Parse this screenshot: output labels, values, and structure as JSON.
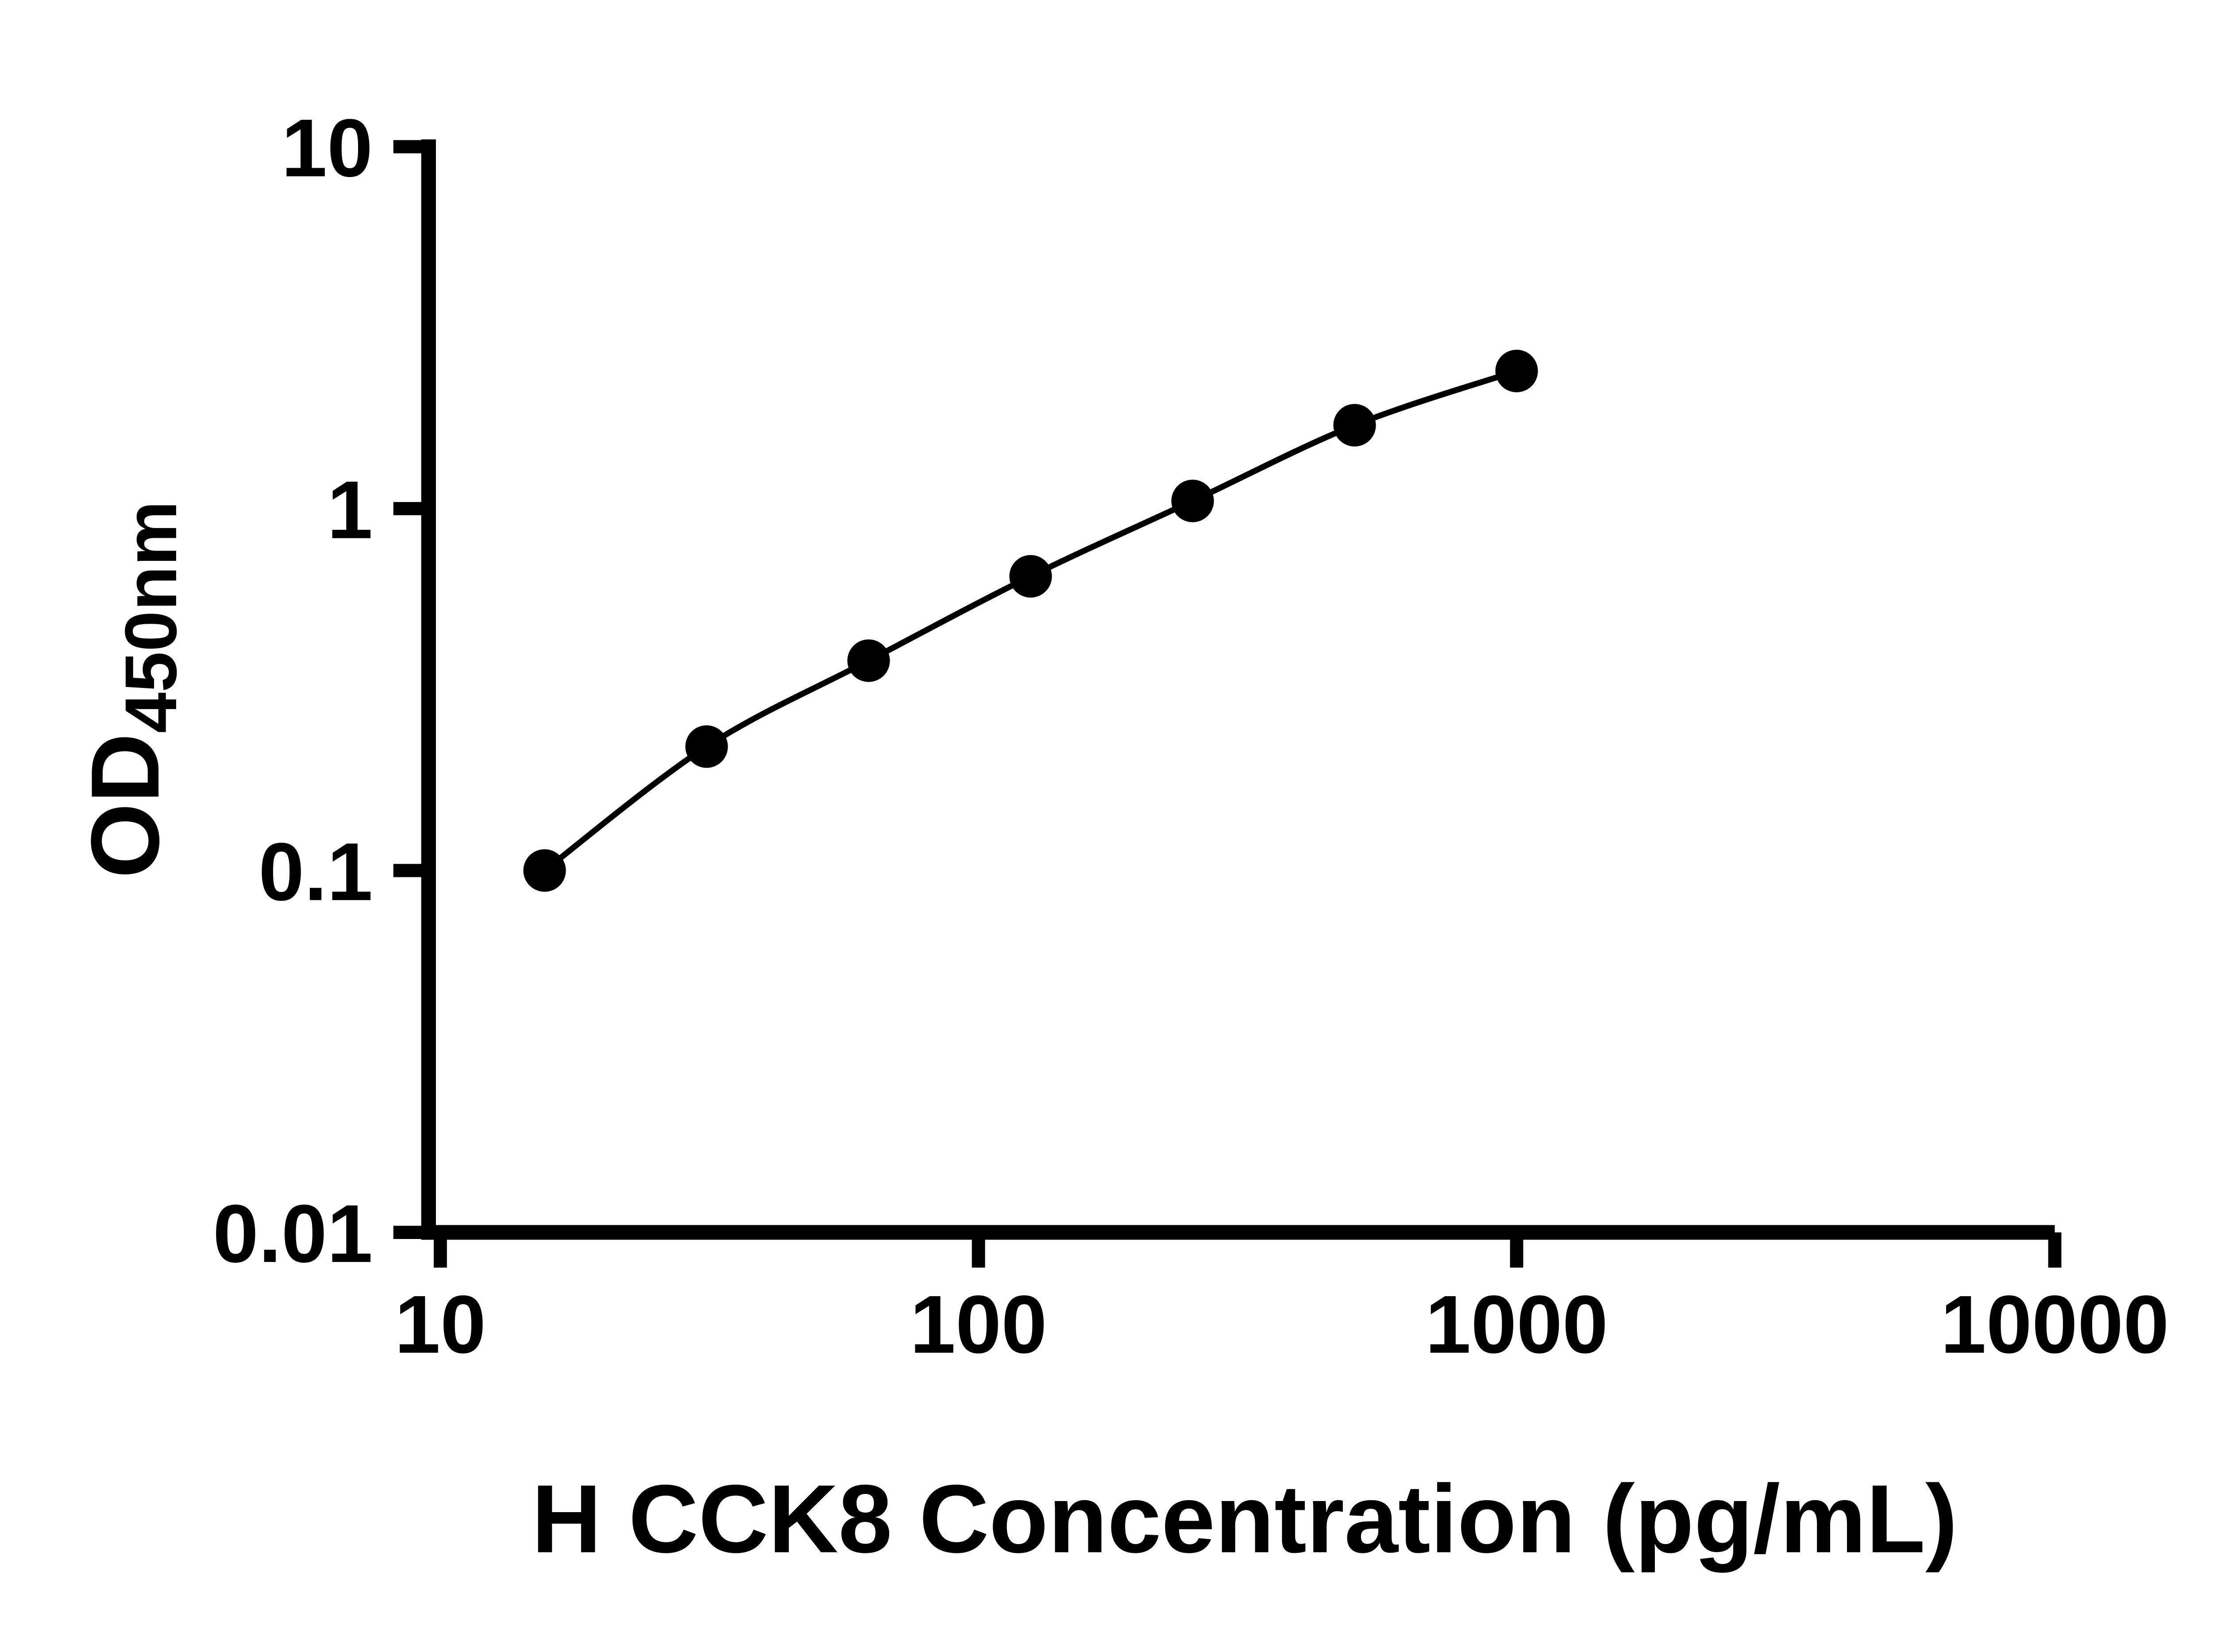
{
  "chart_data": {
    "type": "scatter",
    "series": [
      {
        "name": "standard-curve",
        "x": [
          15.625,
          31.25,
          62.5,
          125,
          250,
          500,
          1000
        ],
        "y": [
          0.1,
          0.22,
          0.38,
          0.65,
          1.05,
          1.7,
          2.4
        ],
        "marker": "circle",
        "line": "smooth-fit"
      }
    ],
    "title": "",
    "xlabel": "H CCK8 Concentration (pg/mL)",
    "ylabel_main": "OD",
    "ylabel_sub": "450nm",
    "x_scale": "log",
    "y_scale": "log",
    "xlim": [
      10,
      10000
    ],
    "ylim": [
      0.01,
      10
    ],
    "x_ticks": [
      10,
      100,
      1000,
      10000
    ],
    "x_tick_labels": [
      "10",
      "100",
      "1000",
      "10000"
    ],
    "y_ticks": [
      10,
      1,
      0.1,
      0.01
    ],
    "y_tick_labels": [
      "10",
      "1",
      "0.1",
      "0.01"
    ],
    "grid": false,
    "legend": "none",
    "marker_color": "#000000",
    "line_color": "#000000",
    "axis_color": "#000000"
  }
}
